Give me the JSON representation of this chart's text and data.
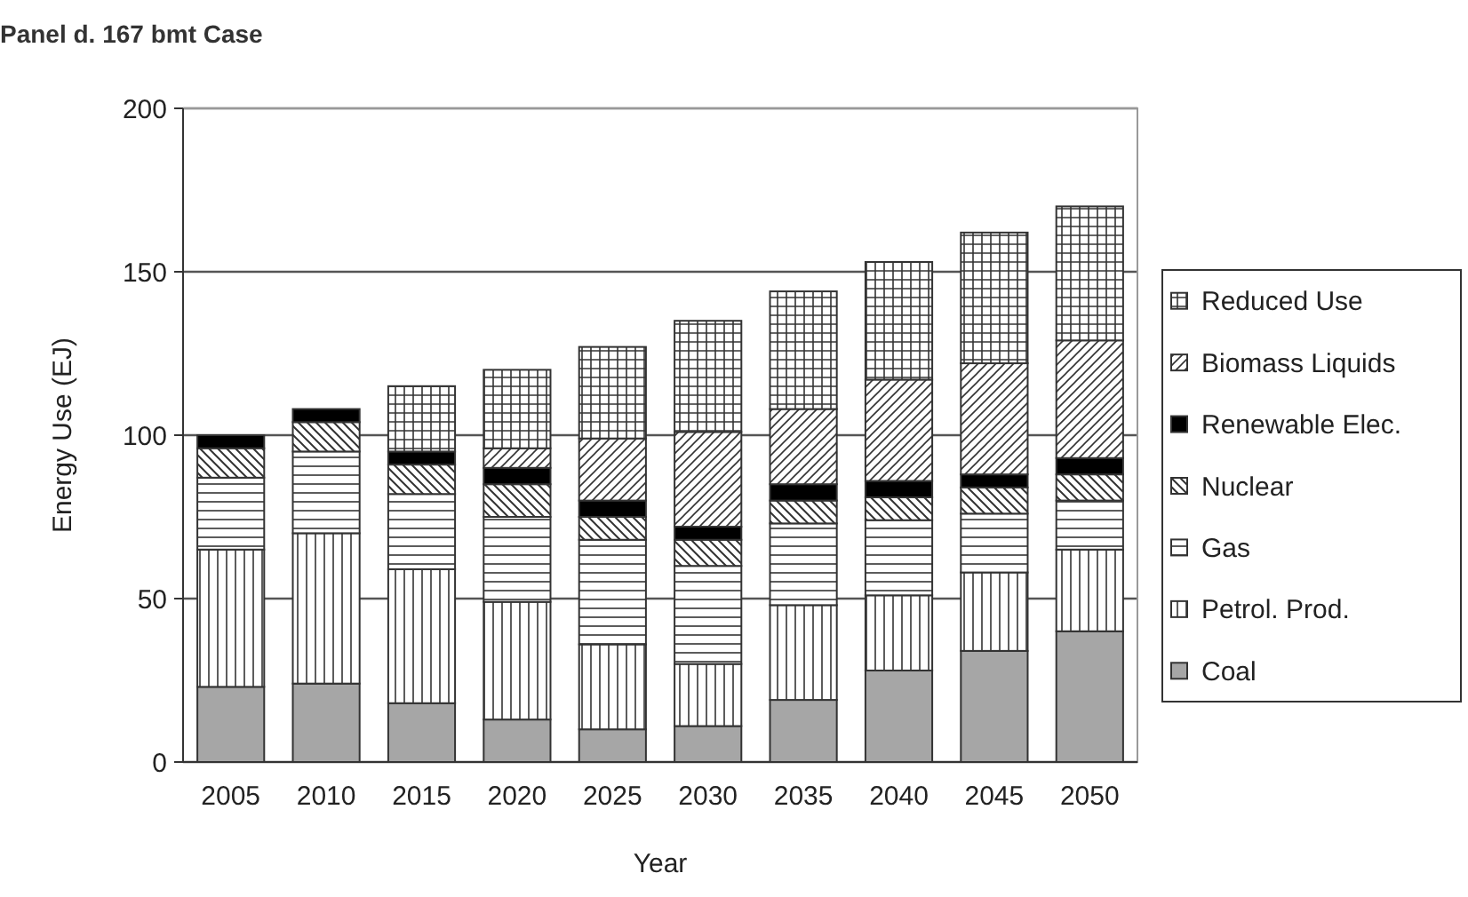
{
  "chart_data": {
    "type": "bar",
    "title": "Panel d. 167 bmt Case",
    "xlabel": "Year",
    "ylabel": "Energy Use (EJ)",
    "stacked": true,
    "categories": [
      "2005",
      "2010",
      "2015",
      "2020",
      "2025",
      "2030",
      "2035",
      "2040",
      "2045",
      "2050"
    ],
    "series": [
      {
        "name": "Coal",
        "color": "#a6a6a6",
        "values": [
          23,
          24,
          18,
          13,
          10,
          11,
          19,
          28,
          34,
          40
        ]
      },
      {
        "name": "Petrol. Prod.",
        "color": "#333333",
        "values": [
          42,
          46,
          41,
          36,
          26,
          19,
          29,
          23,
          24,
          25
        ]
      },
      {
        "name": "Gas",
        "color": "#333333",
        "values": [
          22,
          25,
          23,
          26,
          32,
          30,
          25,
          23,
          18,
          15
        ]
      },
      {
        "name": "Nuclear",
        "color": "#333333",
        "values": [
          9,
          9,
          9,
          10,
          7,
          8,
          7,
          7,
          8,
          8
        ]
      },
      {
        "name": "Renewable Elec.",
        "color": "#000000",
        "values": [
          4,
          4,
          4,
          5,
          5,
          4,
          5,
          5,
          4,
          5
        ]
      },
      {
        "name": "Biomass Liquids",
        "color": "#333333",
        "values": [
          0,
          0,
          0,
          6,
          19,
          29,
          23,
          31,
          34,
          36
        ]
      },
      {
        "name": "Reduced Use",
        "color": "#333333",
        "values": [
          0,
          0,
          20,
          24,
          28,
          34,
          36,
          36,
          40,
          41
        ]
      }
    ],
    "ylim": [
      0,
      200
    ],
    "yticks": [
      0,
      50,
      100,
      150,
      200
    ],
    "grid": "y",
    "legend": "right"
  }
}
